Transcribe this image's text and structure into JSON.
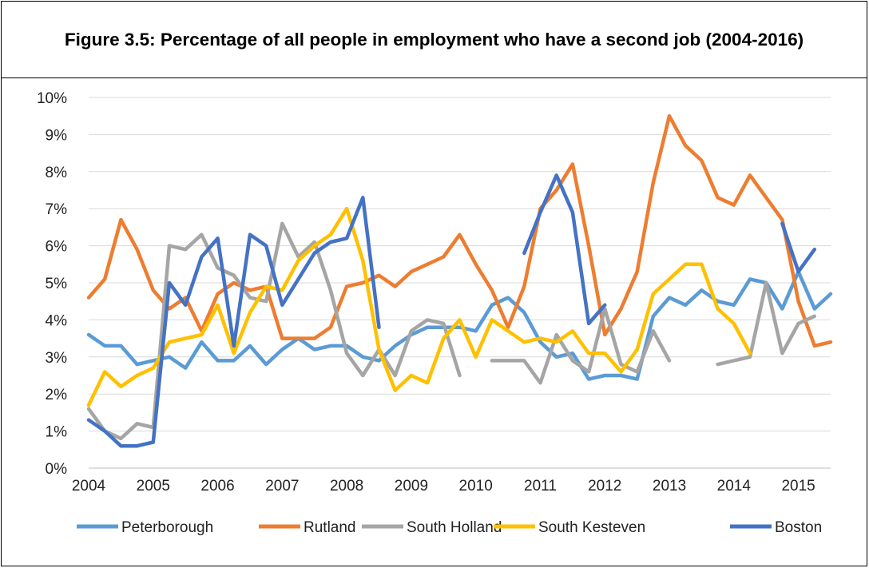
{
  "chart_data": {
    "type": "line",
    "title": "Figure 3.5: Percentage of all people in employment who have a second job (2004-2016)",
    "xlabel": "",
    "ylabel": "",
    "x_ticks": [
      "2004",
      "2005",
      "2006",
      "2007",
      "2008",
      "2009",
      "2010",
      "2011",
      "2012",
      "2013",
      "2014",
      "2015"
    ],
    "x_range": [
      0,
      46
    ],
    "points_per_year": 4,
    "y_ticks": [
      "0%",
      "1%",
      "2%",
      "3%",
      "4%",
      "5%",
      "6%",
      "7%",
      "8%",
      "9%",
      "10%"
    ],
    "ylim": [
      0,
      10
    ],
    "grid": "horizontal",
    "legend_position": "bottom",
    "series": [
      {
        "name": "Peterborough",
        "color": "#5B9BD5",
        "values": [
          3.6,
          3.3,
          3.3,
          2.8,
          2.9,
          3.0,
          2.7,
          3.4,
          2.9,
          2.9,
          3.3,
          2.8,
          3.2,
          3.5,
          3.2,
          3.3,
          3.3,
          3.0,
          2.9,
          3.3,
          3.6,
          3.8,
          3.8,
          3.8,
          3.7,
          4.4,
          4.6,
          4.2,
          3.4,
          3.0,
          3.1,
          2.4,
          2.5,
          2.5,
          2.4,
          4.1,
          4.6,
          4.4,
          4.8,
          4.5,
          4.4,
          5.1,
          5.0,
          4.3,
          5.3,
          4.3,
          4.7
        ]
      },
      {
        "name": "Rutland",
        "color": "#ED7D31",
        "values": [
          4.6,
          5.1,
          6.7,
          5.9,
          4.8,
          4.3,
          4.6,
          3.7,
          4.7,
          5.0,
          4.8,
          4.9,
          3.5,
          3.5,
          3.5,
          3.8,
          4.9,
          5.0,
          5.2,
          4.9,
          5.3,
          5.5,
          5.7,
          6.3,
          5.5,
          4.8,
          3.8,
          4.9,
          7.0,
          7.5,
          8.2,
          6.0,
          3.6,
          4.3,
          5.3,
          7.7,
          9.5,
          8.7,
          8.3,
          7.3,
          7.1,
          7.9,
          7.3,
          6.7,
          4.5,
          3.3,
          3.4
        ]
      },
      {
        "name": "South Holland",
        "color": "#A5A5A5",
        "values": [
          1.6,
          1.0,
          0.8,
          1.2,
          1.1,
          6.0,
          5.9,
          6.3,
          5.4,
          5.2,
          4.6,
          4.5,
          6.6,
          5.7,
          6.1,
          4.8,
          3.1,
          2.5,
          3.2,
          2.5,
          3.7,
          4.0,
          3.9,
          2.5,
          null,
          2.9,
          2.9,
          2.9,
          2.3,
          3.6,
          2.9,
          2.6,
          4.3,
          2.8,
          2.6,
          3.7,
          2.9,
          null,
          null,
          2.8,
          2.9,
          3.0,
          5.0,
          3.1,
          3.9,
          4.1,
          null
        ]
      },
      {
        "name": "South Kesteven",
        "color": "#FFC000",
        "values": [
          1.7,
          2.6,
          2.2,
          2.5,
          2.7,
          3.4,
          3.5,
          3.6,
          4.4,
          3.1,
          4.2,
          4.9,
          4.8,
          5.6,
          6.0,
          6.3,
          7.0,
          5.6,
          3.2,
          2.1,
          2.5,
          2.3,
          3.5,
          4.0,
          3.0,
          4.0,
          3.7,
          3.4,
          3.5,
          3.4,
          3.7,
          3.1,
          3.1,
          2.6,
          3.2,
          4.7,
          5.1,
          5.5,
          5.5,
          4.3,
          3.9,
          3.1,
          null,
          null,
          null,
          null,
          null
        ]
      },
      {
        "name": "Boston",
        "color": "#4472C4",
        "values": [
          1.3,
          1.0,
          0.6,
          0.6,
          0.7,
          5.0,
          4.4,
          5.7,
          6.2,
          3.3,
          6.3,
          6.0,
          4.4,
          5.1,
          5.8,
          6.1,
          6.2,
          7.3,
          3.8,
          null,
          null,
          null,
          null,
          null,
          null,
          null,
          null,
          5.8,
          6.9,
          7.9,
          6.9,
          3.9,
          4.4,
          null,
          null,
          null,
          null,
          null,
          null,
          null,
          null,
          null,
          null,
          6.6,
          5.3,
          5.9,
          null
        ]
      }
    ]
  }
}
